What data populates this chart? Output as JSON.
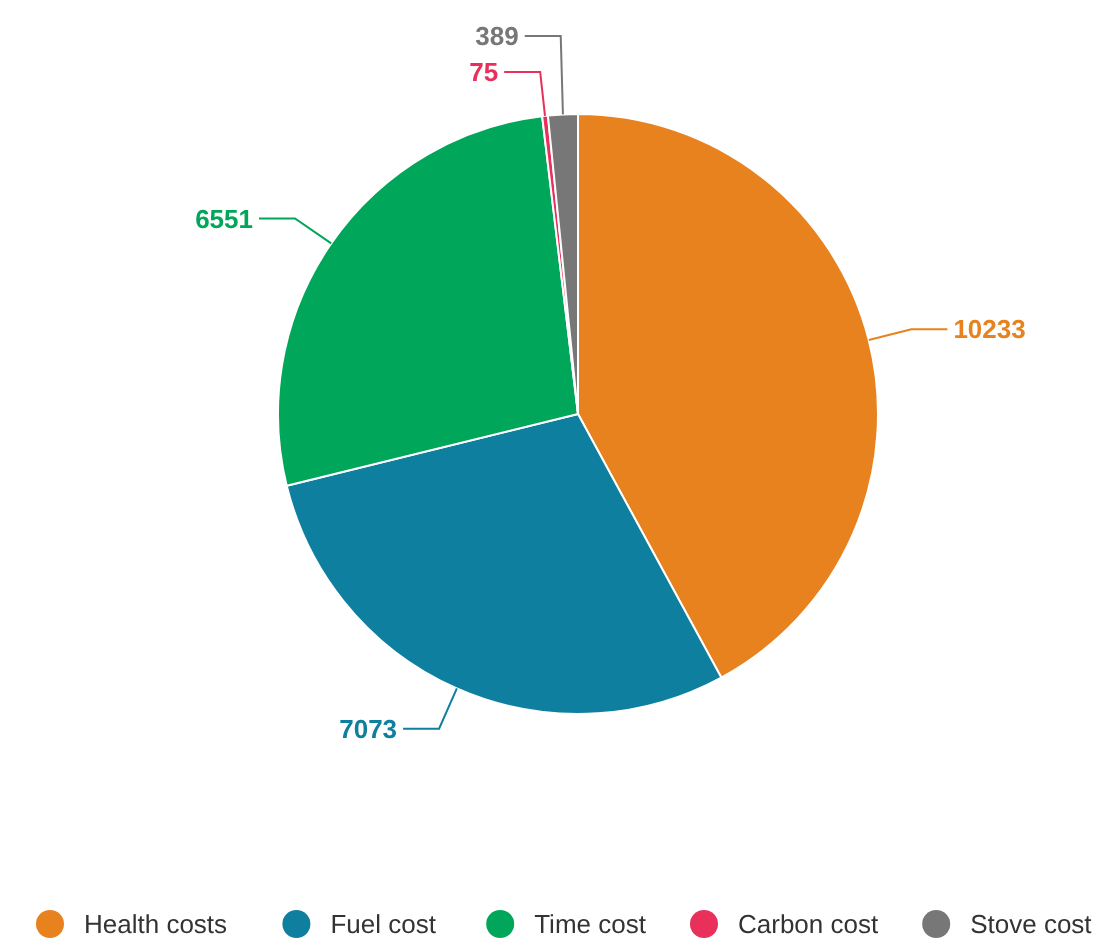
{
  "chart_data": {
    "type": "pie",
    "categories": [
      "Health costs",
      "Fuel cost",
      "Time cost",
      "Carbon cost",
      "Stove cost"
    ],
    "values": [
      10233,
      7073,
      6551,
      75,
      389
    ],
    "colors": [
      "#e8821e",
      "#0f7fa0",
      "#00a659",
      "#e8305a",
      "#777777"
    ],
    "data_labels": true,
    "legend": "bottom"
  }
}
